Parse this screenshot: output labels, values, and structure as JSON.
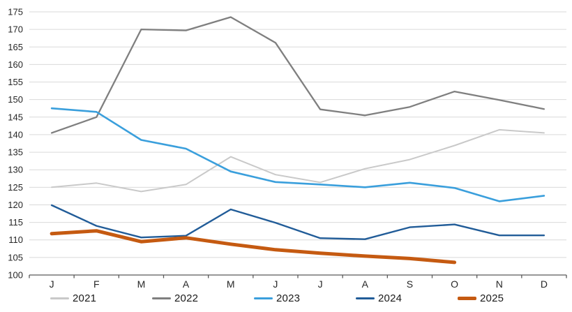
{
  "chart_data": {
    "type": "line",
    "title": "",
    "xlabel": "",
    "ylabel": "",
    "categories": [
      "J",
      "F",
      "M",
      "A",
      "M",
      "J",
      "J",
      "A",
      "S",
      "O",
      "N",
      "D"
    ],
    "ylim": [
      100,
      175
    ],
    "yticks": [
      100,
      105,
      110,
      115,
      120,
      125,
      130,
      135,
      140,
      145,
      150,
      155,
      160,
      165,
      170,
      175
    ],
    "grid": true,
    "legend_position": "bottom",
    "colors": {
      "gridline": "#d9d9d9",
      "axis_line": "#595959",
      "tick_label": "#262626"
    },
    "series": [
      {
        "name": "2021",
        "color": "#c9c9c9",
        "width": 2,
        "values": [
          125.0,
          126.2,
          123.8,
          125.8,
          133.7,
          128.6,
          126.4,
          130.3,
          132.9,
          136.9,
          141.4,
          140.5
        ]
      },
      {
        "name": "2022",
        "color": "#7f7f7f",
        "width": 2.3,
        "values": [
          140.5,
          145.0,
          170.0,
          169.7,
          173.5,
          166.2,
          147.2,
          145.5,
          147.9,
          152.3,
          149.9,
          147.3
        ]
      },
      {
        "name": "2023",
        "color": "#3a9fdc",
        "width": 2.6,
        "values": [
          147.5,
          146.5,
          138.5,
          136.0,
          129.5,
          126.5,
          125.8,
          125.0,
          126.3,
          124.8,
          121.0,
          122.6
        ]
      },
      {
        "name": "2024",
        "color": "#215c98",
        "width": 2.4,
        "values": [
          119.9,
          114.0,
          110.7,
          111.2,
          118.7,
          114.9,
          110.5,
          110.2,
          113.6,
          114.4,
          111.3,
          111.3
        ]
      },
      {
        "name": "2025",
        "color": "#c55a11",
        "width": 5,
        "values": [
          111.8,
          112.6,
          109.5,
          110.6,
          108.8,
          107.2,
          106.2,
          105.4,
          104.7,
          103.6,
          null,
          null
        ]
      }
    ]
  }
}
